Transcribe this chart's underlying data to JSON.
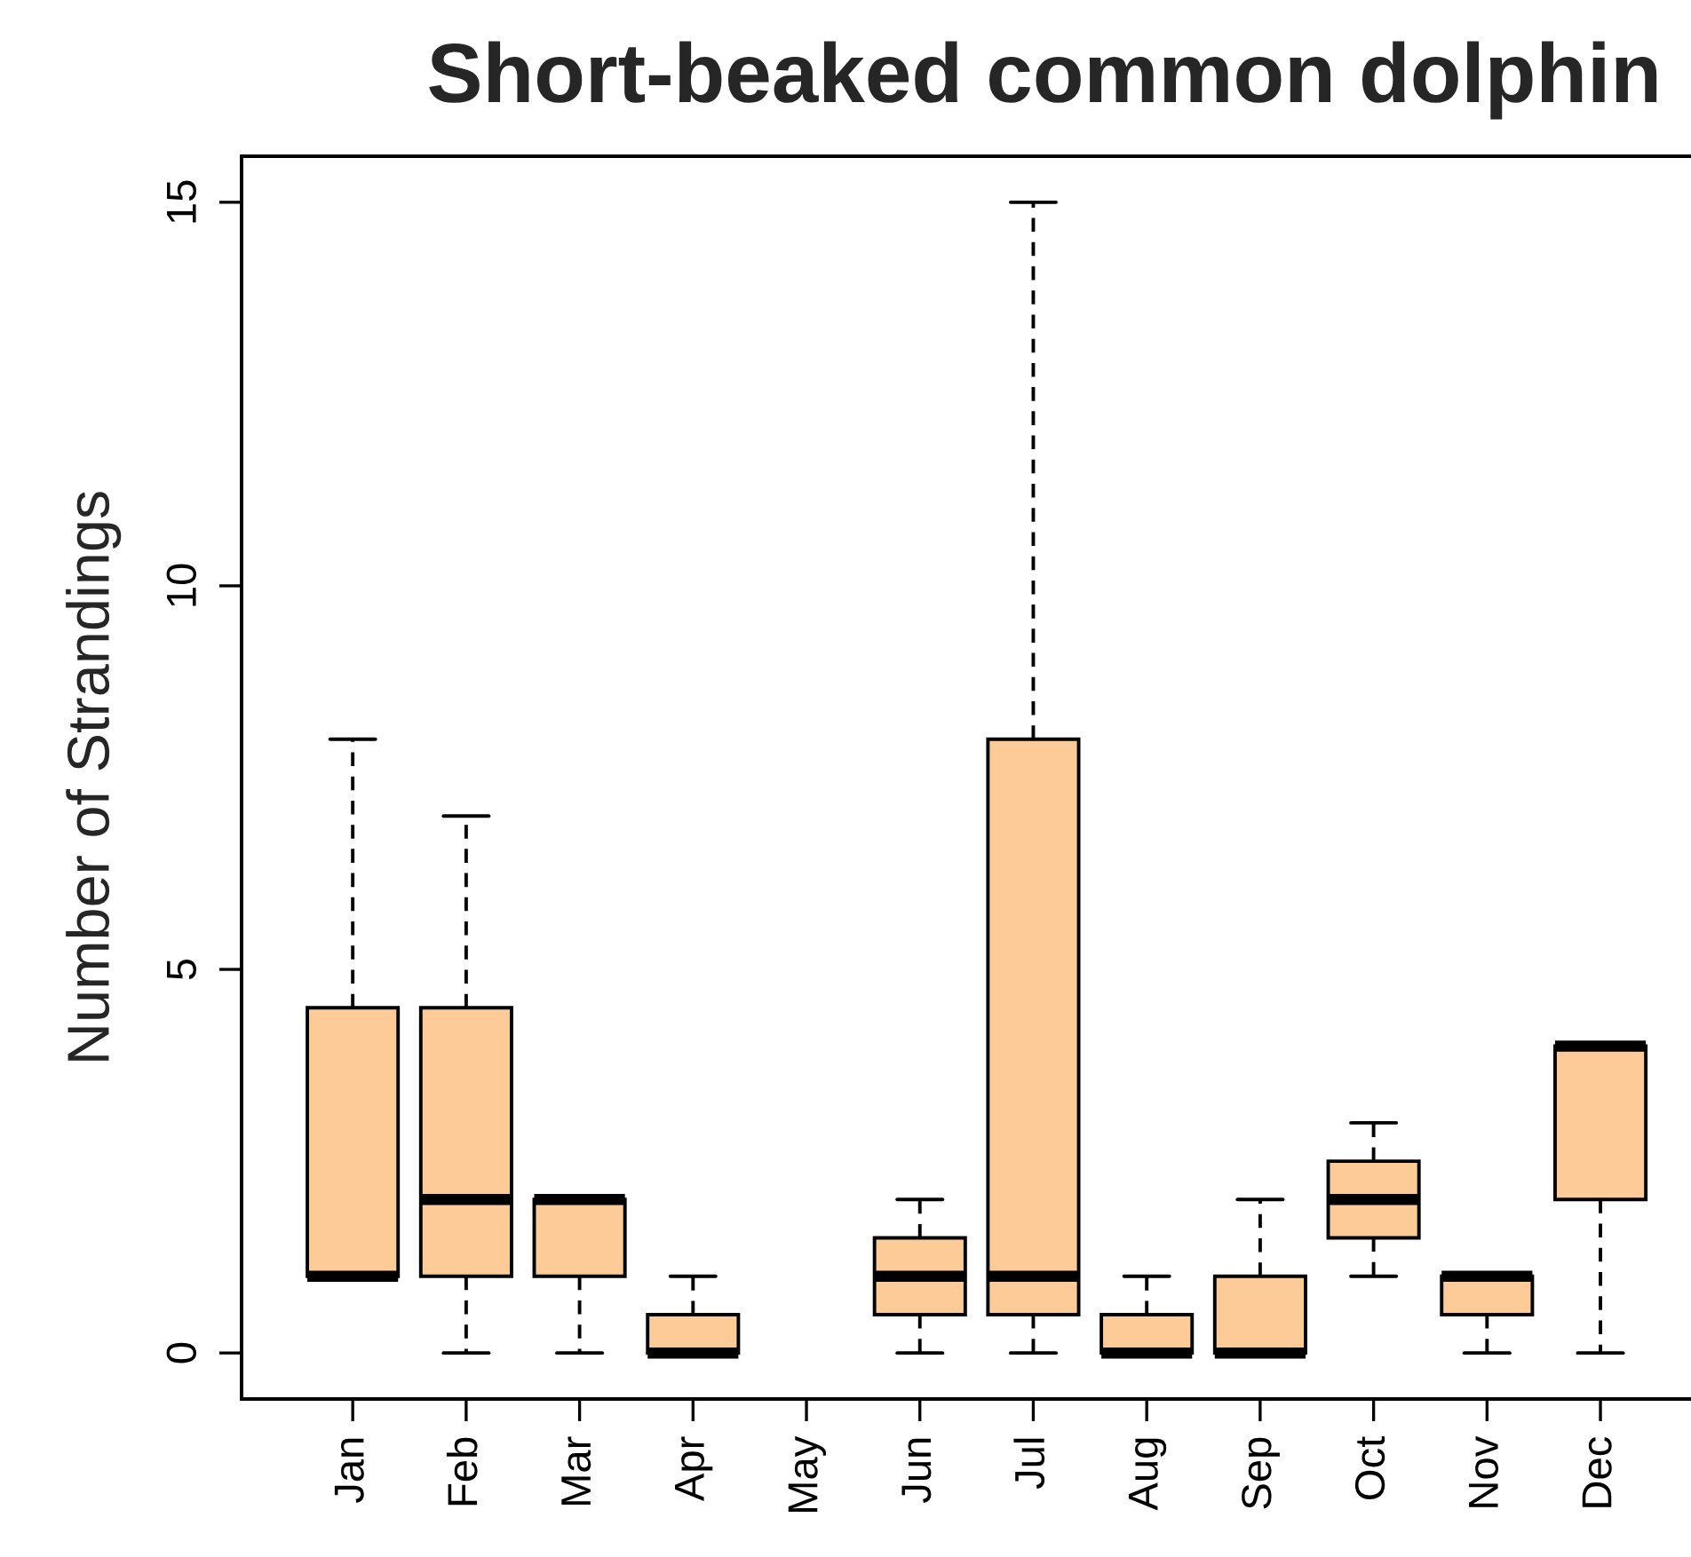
{
  "chart_data": {
    "type": "box",
    "title": "Short-beaked common dolphin",
    "ylabel": "Number of Strandings",
    "categories": [
      "Jan",
      "Feb",
      "Mar",
      "Apr",
      "May",
      "Jun",
      "Jul",
      "Aug",
      "Sep",
      "Oct",
      "Nov",
      "Dec"
    ],
    "boxes": [
      {
        "low": 1,
        "q1": 1,
        "median": 1,
        "q3": 4.5,
        "high": 8
      },
      {
        "low": 0,
        "q1": 1,
        "median": 2,
        "q3": 4.5,
        "high": 7
      },
      {
        "low": 0,
        "q1": 1,
        "median": 2,
        "q3": 2,
        "high": 2
      },
      {
        "low": 0,
        "q1": 0,
        "median": 0,
        "q3": 0.5,
        "high": 1
      },
      null,
      {
        "low": 0,
        "q1": 0.5,
        "median": 1,
        "q3": 1.5,
        "high": 2
      },
      {
        "low": 0,
        "q1": 0.5,
        "median": 1,
        "q3": 8,
        "high": 15
      },
      {
        "low": 0,
        "q1": 0,
        "median": 0,
        "q3": 0.5,
        "high": 1
      },
      {
        "low": 0,
        "q1": 0,
        "median": 0,
        "q3": 1,
        "high": 2
      },
      {
        "low": 1,
        "q1": 1.5,
        "median": 2,
        "q3": 2.5,
        "high": 3
      },
      {
        "low": 0,
        "q1": 0.5,
        "median": 1,
        "q3": 1,
        "high": 1
      },
      {
        "low": 0,
        "q1": 2,
        "median": 4,
        "q3": 4,
        "high": 4
      }
    ],
    "color": "#fccb98",
    "ylim": [
      -0.6,
      15.6
    ],
    "yticks": [
      0,
      5,
      10,
      15
    ]
  }
}
